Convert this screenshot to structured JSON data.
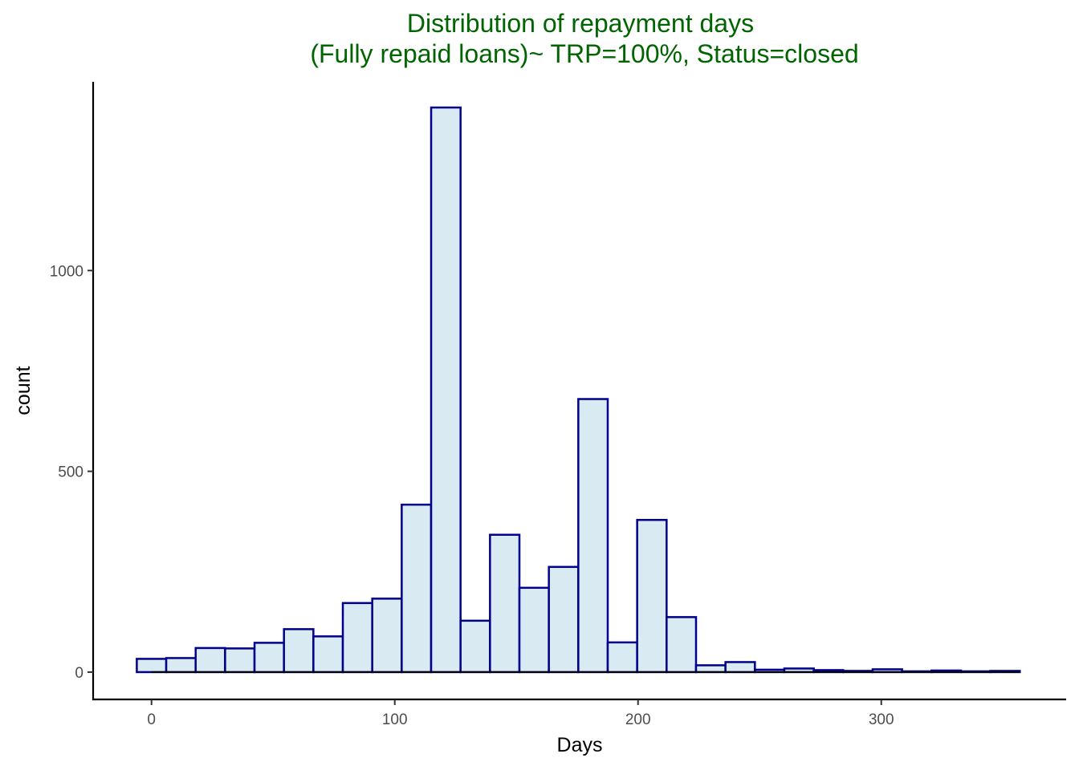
{
  "chart_data": {
    "type": "bar",
    "title_lines": [
      "Distribution of repayment days",
      "(Fully repaid loans)~ TRP=100%, Status=closed"
    ],
    "xlabel": "Days",
    "ylabel": "count",
    "xlim": [
      -24,
      376
    ],
    "ylim": [
      -68,
      1470
    ],
    "x_ticks": [
      0,
      100,
      200,
      300
    ],
    "y_ticks": [
      0,
      500,
      1000
    ],
    "grid": false,
    "legend": "none",
    "bin_width": 12.1,
    "bin_start": -6.05,
    "values": [
      33,
      35,
      60,
      59,
      73,
      107,
      89,
      172,
      183,
      417,
      1406,
      128,
      342,
      210,
      262,
      680,
      74,
      379,
      137,
      17,
      25,
      6,
      9,
      5,
      3,
      7,
      2,
      4,
      2,
      3
    ],
    "colors": {
      "fill": "#d9eaf3",
      "stroke": "#00008b",
      "title": "#006400"
    }
  }
}
